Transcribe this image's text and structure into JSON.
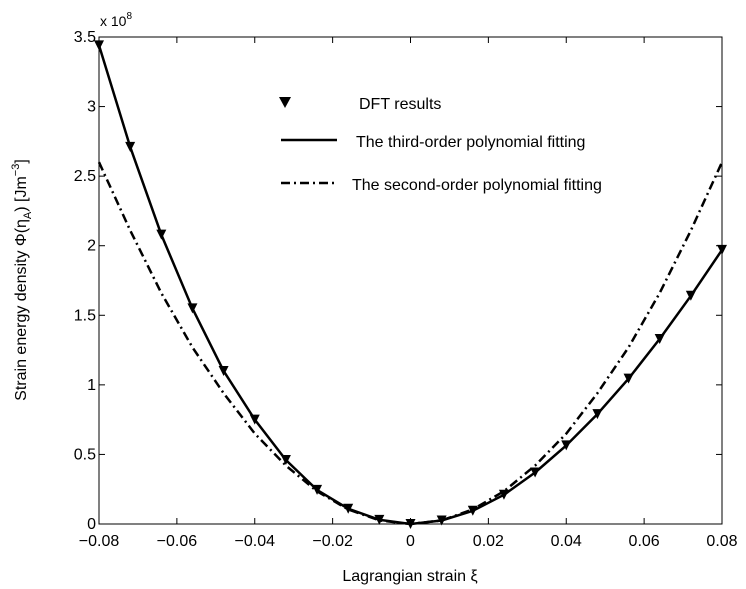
{
  "chart_data": {
    "type": "line",
    "title": "",
    "xlabel": "Lagrangian strain ξ",
    "ylabel_parts": {
      "prefix": "Strain energy density Φ(η",
      "sub": "A",
      "mid": ") [Jm",
      "sup": "−3",
      "suffix": "]"
    },
    "y_multiplier": {
      "base": "x 10",
      "exp": "8"
    },
    "xlim": [
      -0.08,
      0.08
    ],
    "ylim": [
      0,
      3.5
    ],
    "x_ticks": [
      -0.08,
      -0.06,
      -0.04,
      -0.02,
      0,
      0.02,
      0.04,
      0.06,
      0.08
    ],
    "x_tick_labels": [
      "−0.08",
      "−0.06",
      "−0.04",
      "−0.02",
      "0",
      "0.02",
      "0.04",
      "0.06",
      "0.08"
    ],
    "y_ticks": [
      0,
      0.5,
      1,
      1.5,
      2,
      2.5,
      3,
      3.5
    ],
    "y_tick_labels": [
      "0",
      "0.5",
      "1",
      "1.5",
      "2",
      "2.5",
      "3",
      "3.5"
    ],
    "grid": false,
    "legend_position": "top-center",
    "series": [
      {
        "name": "DFT results",
        "style": "markers",
        "marker": "triangle-down",
        "color": "#000000",
        "x": [
          -0.08,
          -0.072,
          -0.064,
          -0.056,
          -0.048,
          -0.04,
          -0.032,
          -0.024,
          -0.016,
          -0.008,
          0,
          0.008,
          0.016,
          0.024,
          0.032,
          0.04,
          0.048,
          0.056,
          0.064,
          0.072,
          0.08
        ],
        "y": [
          3.44,
          2.71,
          2.08,
          1.55,
          1.1,
          0.75,
          0.46,
          0.245,
          0.11,
          0.03,
          0,
          0.025,
          0.095,
          0.21,
          0.37,
          0.565,
          0.79,
          1.045,
          1.33,
          1.64,
          1.97
        ]
      },
      {
        "name": "The third-order polynomial fitting",
        "style": "solid",
        "color": "#000000",
        "x": [
          -0.08,
          -0.072,
          -0.064,
          -0.056,
          -0.048,
          -0.04,
          -0.032,
          -0.024,
          -0.016,
          -0.008,
          0,
          0.008,
          0.016,
          0.024,
          0.032,
          0.04,
          0.048,
          0.056,
          0.064,
          0.072,
          0.08
        ],
        "y": [
          3.44,
          2.71,
          2.08,
          1.55,
          1.1,
          0.75,
          0.46,
          0.245,
          0.11,
          0.03,
          0,
          0.025,
          0.095,
          0.21,
          0.37,
          0.565,
          0.79,
          1.045,
          1.33,
          1.64,
          1.97
        ]
      },
      {
        "name": "The second-order polynomial fitting",
        "style": "dashdot",
        "color": "#000000",
        "x": [
          -0.08,
          -0.072,
          -0.064,
          -0.056,
          -0.048,
          -0.04,
          -0.032,
          -0.024,
          -0.016,
          -0.008,
          0,
          0.008,
          0.016,
          0.024,
          0.032,
          0.04,
          0.048,
          0.056,
          0.064,
          0.072,
          0.08
        ],
        "y": [
          2.6,
          2.11,
          1.66,
          1.27,
          0.94,
          0.65,
          0.42,
          0.235,
          0.105,
          0.026,
          0,
          0.026,
          0.105,
          0.235,
          0.42,
          0.65,
          0.94,
          1.27,
          1.66,
          2.11,
          2.6
        ]
      }
    ]
  }
}
